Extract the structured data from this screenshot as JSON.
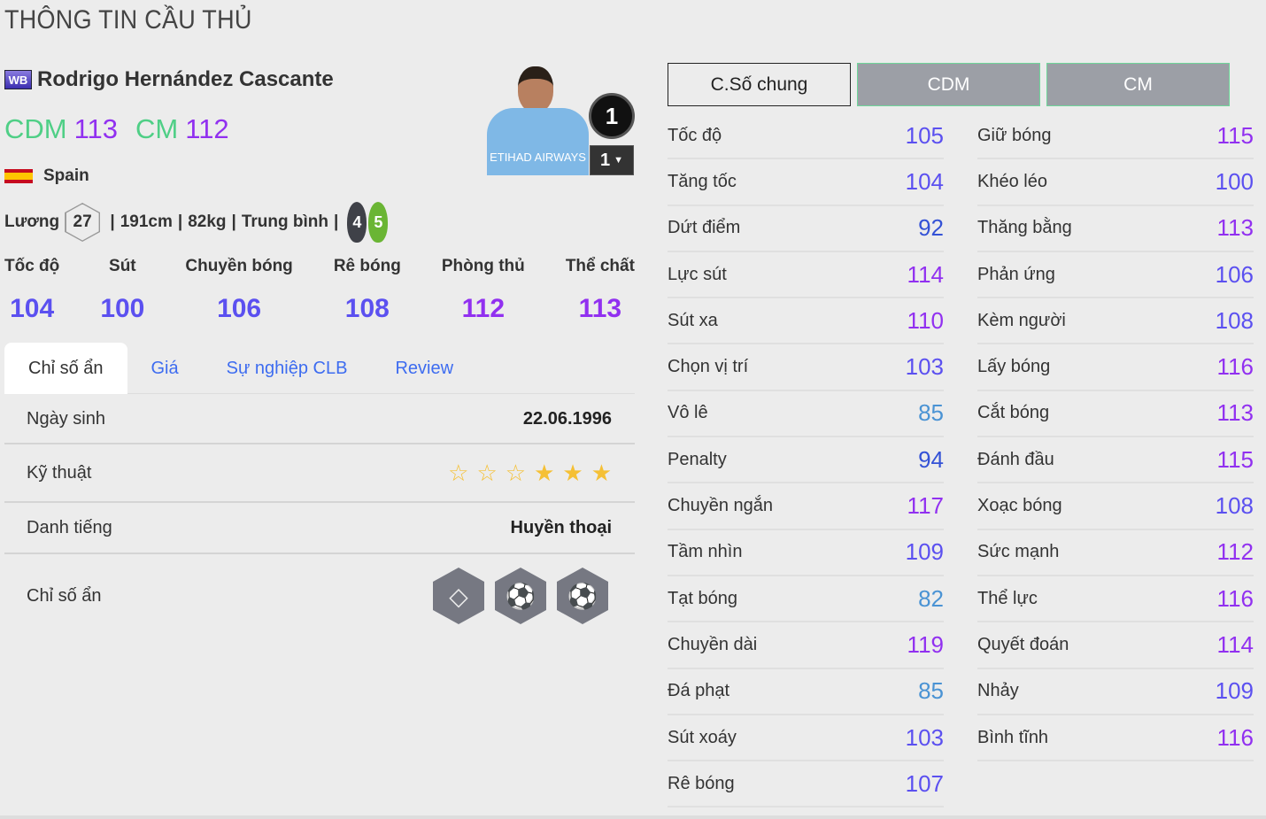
{
  "page_title": "THÔNG TIN CẦU THỦ",
  "player": {
    "season_icon": "WB",
    "name": "Rodrigo Hernández Cascante",
    "positions": [
      {
        "pos": "CDM",
        "ovr": "113"
      },
      {
        "pos": "CM",
        "ovr": "112"
      }
    ],
    "nation": "Spain",
    "salary_label": "Lương",
    "salary": "27",
    "height": "191cm",
    "weight": "82kg",
    "body_type": "Trung bình",
    "weak_foot_left": "4",
    "strong_foot_right": "5",
    "number_badge": "1",
    "upgrade_level": "1",
    "shirt_text": "ETIHAD AIRWAYS"
  },
  "categories": [
    {
      "label": "Tốc độ",
      "value": "104"
    },
    {
      "label": "Sút",
      "value": "100"
    },
    {
      "label": "Chuyền bóng",
      "value": "106"
    },
    {
      "label": "Rê bóng",
      "value": "108"
    },
    {
      "label": "Phòng thủ",
      "value": "112"
    },
    {
      "label": "Thể chất",
      "value": "113"
    }
  ],
  "tabs": [
    "Chỉ số ẩn",
    "Giá",
    "Sự nghiệp CLB",
    "Review"
  ],
  "details": {
    "birth_label": "Ngày sinh",
    "birth": "22.06.1996",
    "skill_label": "Kỹ thuật",
    "skill_stars": 3,
    "skill_max": 6,
    "rep_label": "Danh tiếng",
    "rep": "Huyền thoại",
    "hidden_label": "Chỉ số ẩn",
    "hidden_traits": [
      "diamond-icon",
      "long-shot-icon",
      "curl-shot-icon"
    ]
  },
  "stat_tabs": [
    "C.Số chung",
    "CDM",
    "CM"
  ],
  "stats_left": [
    [
      "Tốc độ",
      "105"
    ],
    [
      "Tăng tốc",
      "104"
    ],
    [
      "Dứt điểm",
      "92"
    ],
    [
      "Lực sút",
      "114"
    ],
    [
      "Sút xa",
      "110"
    ],
    [
      "Chọn vị trí",
      "103"
    ],
    [
      "Vô lê",
      "85"
    ],
    [
      "Penalty",
      "94"
    ],
    [
      "Chuyền ngắn",
      "117"
    ],
    [
      "Tầm nhìn",
      "109"
    ],
    [
      "Tạt bóng",
      "82"
    ],
    [
      "Chuyền dài",
      "119"
    ],
    [
      "Đá phạt",
      "85"
    ],
    [
      "Sút xoáy",
      "103"
    ],
    [
      "Rê bóng",
      "107"
    ]
  ],
  "stats_right": [
    [
      "Giữ bóng",
      "115"
    ],
    [
      "Khéo léo",
      "100"
    ],
    [
      "Thăng bằng",
      "113"
    ],
    [
      "Phản ứng",
      "106"
    ],
    [
      "Kèm người",
      "108"
    ],
    [
      "Lấy bóng",
      "116"
    ],
    [
      "Cắt bóng",
      "113"
    ],
    [
      "Đánh đầu",
      "115"
    ],
    [
      "Xoạc bóng",
      "108"
    ],
    [
      "Sức mạnh",
      "112"
    ],
    [
      "Thể lực",
      "116"
    ],
    [
      "Quyết đoán",
      "114"
    ],
    [
      "Nhảy",
      "109"
    ],
    [
      "Bình tĩnh",
      "116"
    ]
  ],
  "colors": {
    "position": "#4fcf86",
    "stat_110_plus": "#9130f0",
    "stat_100_109": "#5b50f0",
    "stat_90s": "#3452d6",
    "stat_80s": "#4a93d4",
    "link": "#3d6cf0",
    "star": "#f5c035"
  }
}
